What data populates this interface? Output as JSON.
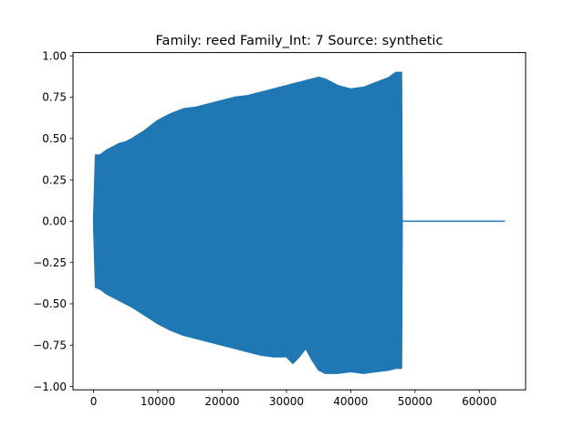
{
  "chart_data": {
    "type": "line",
    "title": "Family: reed Family_Int: 7 Source: synthetic",
    "xlabel": "",
    "ylabel": "",
    "xlim": [
      -3200,
      67200
    ],
    "ylim": [
      -1.02,
      1.02
    ],
    "x_ticks": [
      {
        "value": 0,
        "label": "0"
      },
      {
        "value": 10000,
        "label": "10000"
      },
      {
        "value": 20000,
        "label": "20000"
      },
      {
        "value": 30000,
        "label": "30000"
      },
      {
        "value": 40000,
        "label": "40000"
      },
      {
        "value": 50000,
        "label": "50000"
      },
      {
        "value": 60000,
        "label": "60000"
      }
    ],
    "y_ticks": [
      {
        "value": 1.0,
        "label": "1.00"
      },
      {
        "value": 0.75,
        "label": "0.75"
      },
      {
        "value": 0.5,
        "label": "0.50"
      },
      {
        "value": 0.25,
        "label": "0.25"
      },
      {
        "value": 0.0,
        "label": "0.00"
      },
      {
        "value": -0.25,
        "label": "−0.25"
      },
      {
        "value": -0.5,
        "label": "−0.50"
      },
      {
        "value": -0.75,
        "label": "−0.75"
      },
      {
        "value": -1.0,
        "label": "−1.00"
      }
    ],
    "grid": false,
    "legend": "none",
    "series_color": "#1f77b4",
    "waveform_envelope": {
      "x": [
        0,
        300,
        1000,
        2000,
        3000,
        4000,
        5000,
        6000,
        8000,
        10000,
        12000,
        14000,
        16000,
        18000,
        20000,
        22000,
        24000,
        26000,
        28000,
        30000,
        31000,
        32000,
        33000,
        34000,
        35000,
        36000,
        38000,
        40000,
        42000,
        44000,
        46000,
        47000,
        47900,
        48000
      ],
      "upper": [
        0.0,
        0.4,
        0.4,
        0.43,
        0.45,
        0.47,
        0.48,
        0.5,
        0.55,
        0.61,
        0.65,
        0.68,
        0.69,
        0.71,
        0.73,
        0.75,
        0.76,
        0.78,
        0.8,
        0.82,
        0.83,
        0.84,
        0.85,
        0.86,
        0.87,
        0.86,
        0.82,
        0.8,
        0.81,
        0.84,
        0.87,
        0.9,
        0.9,
        0.0
      ],
      "lower": [
        0.0,
        -0.4,
        -0.41,
        -0.44,
        -0.46,
        -0.48,
        -0.5,
        -0.52,
        -0.57,
        -0.62,
        -0.66,
        -0.69,
        -0.71,
        -0.73,
        -0.75,
        -0.77,
        -0.79,
        -0.81,
        -0.82,
        -0.82,
        -0.86,
        -0.82,
        -0.77,
        -0.84,
        -0.9,
        -0.92,
        -0.92,
        -0.91,
        -0.92,
        -0.91,
        -0.9,
        -0.89,
        -0.89,
        0.0
      ]
    },
    "silence": {
      "x": [
        48000,
        64000
      ],
      "y": [
        0.0,
        0.0
      ]
    }
  }
}
